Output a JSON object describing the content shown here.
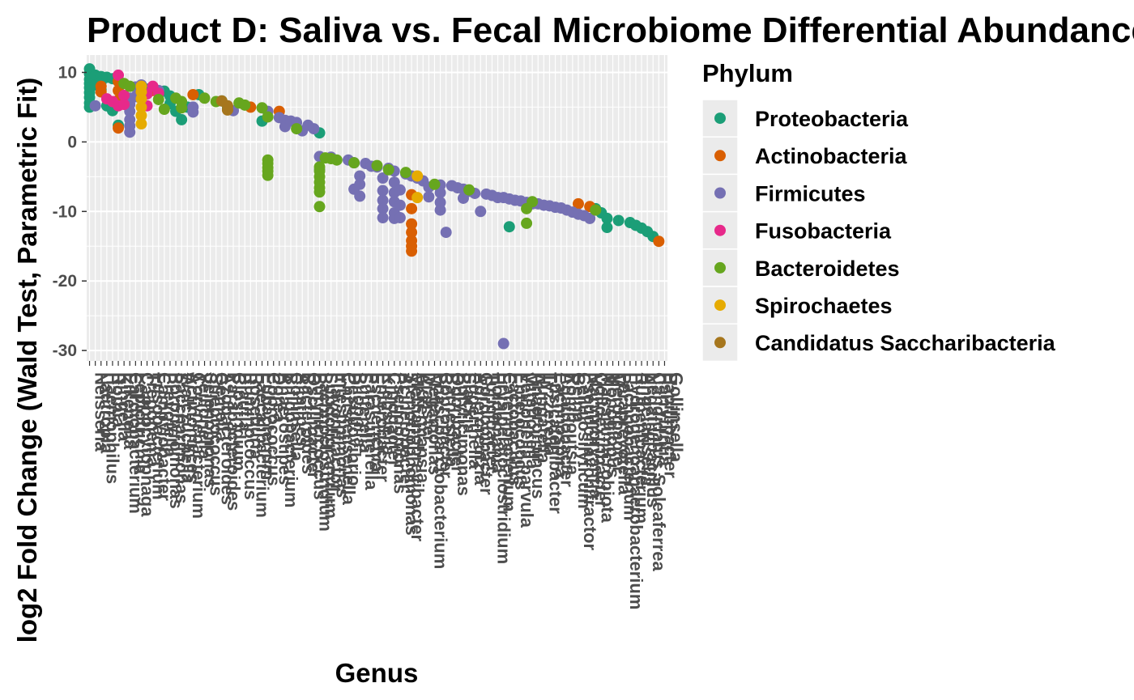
{
  "chart_data": {
    "type": "scatter",
    "title": "Product D: Saliva vs. Fecal Microbiome Differential Abundance",
    "xlabel": "Genus",
    "ylabel": "log2 Fold Change (Wald Test, Parametric Fit)",
    "ylim": [
      -31.5,
      12.5
    ],
    "y_ticks": [
      10,
      0,
      -10,
      -20,
      -30
    ],
    "y_tick_labels": [
      "10",
      "0",
      "-10",
      "-20",
      "-30"
    ],
    "grid": true,
    "panel_background": "#ebebeb",
    "legend": {
      "title": "Phylum",
      "position": "right",
      "entries": [
        {
          "name": "Proteobacteria",
          "color": "#1b9e77"
        },
        {
          "name": "Actinobacteria",
          "color": "#d95f02"
        },
        {
          "name": "Firmicutes",
          "color": "#7570b3"
        },
        {
          "name": "Fusobacteria",
          "color": "#e7298a"
        },
        {
          "name": "Bacteroidetes",
          "color": "#66a61e"
        },
        {
          "name": "Spirochaetes",
          "color": "#e6ab02"
        },
        {
          "name": "Candidatus Saccharibacteria",
          "color": "#a6761d"
        }
      ]
    },
    "x_tick_labels": [
      "Neisseria",
      "Lautropia",
      "Haemophilus",
      "Rothia",
      "Kingella",
      "Eikenella",
      "Cardiobacterium",
      "Leptotrichia",
      "Capnocytophaga",
      "Treponema",
      "Fusobacterium",
      "Campylobacter",
      "Prevotella",
      "Porphyromonas",
      "Saccharimonas",
      "Walczuchella",
      "Actinomyces",
      "Corynebacterium",
      "Veillonella",
      "Selenomonas",
      "Streptococcus",
      "Gemella",
      "Azobacteroides",
      "Parabacteroides",
      "Clostridium",
      "Blautia",
      "Ruminococcus",
      "Roseburia",
      "Faecalibacterium",
      "Eubacterium",
      "Coprococcus",
      "Dorea",
      "Anaerostipes",
      "Bifidobacterium",
      "Collinsella",
      "Alistipes",
      "Bacteroides",
      "Oscillibacter",
      "Butyricicoccus",
      "Lachnoclostridium",
      "Subdoligranulum",
      "Flavonifractor",
      "Intestinimonas",
      "Christensenella",
      "Desulfovibrio",
      "Bilophila",
      "Sutterella",
      "Parasutterella",
      "Escherichia",
      "Enterobacter",
      "Klebsiella",
      "Citrobacter",
      "Pseudomonas",
      "Acinetobacter",
      "Stenotrophomonas",
      "Methanobrevibacter",
      "Akkermansia",
      "Dialister",
      "Megamonas",
      "Phascolarctobacterium",
      "Coprobacter",
      "Barnesiella",
      "Odoribacter",
      "Butyricimonas",
      "Slackia",
      "Eggerthella",
      "Adlercreutzia",
      "Gordonibacter",
      "Turicibacter",
      "Holdemania",
      "Erysipelatoclostridium",
      "Catenibacterium",
      "Lactobacillus",
      "Enterococcus",
      "Veillonella parvula",
      "Mitsuokella",
      "Anaerotruncus",
      "Hungatella",
      "Tyzzerella",
      "Fusicatenibacter",
      "Lachnospira",
      "Agathobacter",
      "Romboutsia",
      "Gelria",
      "Cellulosilyticum",
      "Pseudoflavonifractor",
      "Marvinbryantia",
      "Colidextribacter",
      "Massilimicrobiota",
      "Monoglobus",
      "Merdibacter",
      "Paraprevotella",
      "Lachnobacterium",
      "Hydrogenoanaerobacterium",
      "Ruthenibacterium",
      "Angelakisella",
      "Negativibacillus",
      "Candidatus Soleaferrea",
      "Harryflintia",
      "Papillibacter",
      "Gollinsella"
    ],
    "series": [
      {
        "name": "Proteobacteria",
        "points": [
          [
            0,
            10.5
          ],
          [
            0,
            9.8
          ],
          [
            0,
            9.0
          ],
          [
            0,
            8.4
          ],
          [
            0,
            7.8
          ],
          [
            0,
            7.1
          ],
          [
            0,
            6.4
          ],
          [
            0,
            5.6
          ],
          [
            0,
            5.0
          ],
          [
            1,
            9.6
          ],
          [
            1,
            8.2
          ],
          [
            2,
            9.4
          ],
          [
            2,
            8.6
          ],
          [
            2,
            7.5
          ],
          [
            3,
            9.3
          ],
          [
            3,
            5.2
          ],
          [
            4,
            9.1
          ],
          [
            4,
            4.5
          ],
          [
            5,
            8.9
          ],
          [
            5,
            2.4
          ],
          [
            10,
            7.6
          ],
          [
            13,
            7.3
          ],
          [
            14,
            6.6
          ],
          [
            14,
            5.5
          ],
          [
            15,
            4.4
          ],
          [
            16,
            3.2
          ],
          [
            17,
            5.0
          ],
          [
            19,
            6.8
          ],
          [
            23,
            5.9
          ],
          [
            24,
            4.8
          ],
          [
            30,
            3.0
          ],
          [
            40,
            1.3
          ],
          [
            66,
            -7.0
          ],
          [
            73,
            -12.2
          ],
          [
            88,
            -9.6
          ],
          [
            89,
            -10.2
          ],
          [
            90,
            -11.0
          ],
          [
            90,
            -12.3
          ],
          [
            92,
            -11.3
          ],
          [
            94,
            -11.6
          ],
          [
            95,
            -12.0
          ],
          [
            96,
            -12.4
          ],
          [
            97,
            -12.9
          ],
          [
            98,
            -13.6
          ]
        ]
      },
      {
        "name": "Actinobacteria",
        "points": [
          [
            2,
            8.0
          ],
          [
            2,
            7.2
          ],
          [
            5,
            8.7
          ],
          [
            5,
            7.4
          ],
          [
            5,
            6.0
          ],
          [
            5,
            2.0
          ],
          [
            11,
            7.4
          ],
          [
            18,
            6.8
          ],
          [
            28,
            5.0
          ],
          [
            33,
            4.4
          ],
          [
            56,
            -7.6
          ],
          [
            56,
            -9.6
          ],
          [
            56,
            -11.8
          ],
          [
            56,
            -13.0
          ],
          [
            56,
            -14.2
          ],
          [
            56,
            -15.0
          ],
          [
            56,
            -15.7
          ],
          [
            85,
            -8.9
          ],
          [
            87,
            -9.3
          ],
          [
            99,
            -14.3
          ]
        ]
      },
      {
        "name": "Firmicutes",
        "points": [
          [
            1,
            5.2
          ],
          [
            7,
            6.3
          ],
          [
            7,
            5.4
          ],
          [
            7,
            4.4
          ],
          [
            7,
            3.2
          ],
          [
            7,
            2.3
          ],
          [
            7,
            1.4
          ],
          [
            8,
            7.9
          ],
          [
            8,
            6.5
          ],
          [
            9,
            8.2
          ],
          [
            12,
            7.4
          ],
          [
            18,
            5.0
          ],
          [
            18,
            4.3
          ],
          [
            25,
            4.5
          ],
          [
            31,
            4.4
          ],
          [
            33,
            3.5
          ],
          [
            34,
            3.1
          ],
          [
            34,
            2.2
          ],
          [
            35,
            3.0
          ],
          [
            36,
            2.8
          ],
          [
            37,
            1.6
          ],
          [
            38,
            2.4
          ],
          [
            39,
            1.9
          ],
          [
            40,
            -2.1
          ],
          [
            40,
            -4.0
          ],
          [
            42,
            -2.2
          ],
          [
            45,
            -2.6
          ],
          [
            46,
            -3.0
          ],
          [
            46,
            -6.8
          ],
          [
            47,
            -4.9
          ],
          [
            47,
            -6.1
          ],
          [
            47,
            -7.8
          ],
          [
            48,
            -3.1
          ],
          [
            49,
            -3.5
          ],
          [
            50,
            -3.6
          ],
          [
            51,
            -5.2
          ],
          [
            51,
            -7.0
          ],
          [
            51,
            -8.4
          ],
          [
            51,
            -9.6
          ],
          [
            51,
            -10.9
          ],
          [
            52,
            -3.8
          ],
          [
            53,
            -4.2
          ],
          [
            53,
            -5.8
          ],
          [
            53,
            -7.3
          ],
          [
            53,
            -8.6
          ],
          [
            53,
            -10.2
          ],
          [
            53,
            -11.0
          ],
          [
            54,
            -6.9
          ],
          [
            54,
            -9.1
          ],
          [
            54,
            -10.9
          ],
          [
            55,
            -4.6
          ],
          [
            56,
            -4.9
          ],
          [
            57,
            -5.2
          ],
          [
            58,
            -5.6
          ],
          [
            59,
            -7.9
          ],
          [
            59,
            -6.5
          ],
          [
            61,
            -6.2
          ],
          [
            61,
            -7.3
          ],
          [
            61,
            -8.7
          ],
          [
            61,
            -9.8
          ],
          [
            62,
            -13.0
          ],
          [
            63,
            -6.3
          ],
          [
            64,
            -6.6
          ],
          [
            65,
            -6.8
          ],
          [
            65,
            -8.1
          ],
          [
            66,
            -7.1
          ],
          [
            67,
            -7.4
          ],
          [
            68,
            -10.0
          ],
          [
            69,
            -7.5
          ],
          [
            70,
            -7.7
          ],
          [
            71,
            -8.0
          ],
          [
            72,
            -8.0
          ],
          [
            73,
            -8.2
          ],
          [
            74,
            -8.4
          ],
          [
            75,
            -8.5
          ],
          [
            76,
            -8.7
          ],
          [
            77,
            -8.9
          ],
          [
            78,
            -8.9
          ],
          [
            79,
            -9.1
          ],
          [
            80,
            -9.2
          ],
          [
            81,
            -9.4
          ],
          [
            82,
            -9.5
          ],
          [
            83,
            -9.8
          ],
          [
            84,
            -10.1
          ],
          [
            85,
            -10.4
          ],
          [
            86,
            -10.6
          ],
          [
            87,
            -11.0
          ],
          [
            72,
            -29.0
          ]
        ]
      },
      {
        "name": "Fusobacteria",
        "points": [
          [
            3,
            6.2
          ],
          [
            4,
            5.8
          ],
          [
            5,
            9.6
          ],
          [
            5,
            5.2
          ],
          [
            6,
            6.7
          ],
          [
            6,
            5.4
          ],
          [
            10,
            6.9
          ],
          [
            10,
            5.2
          ],
          [
            11,
            8.0
          ],
          [
            12,
            7.0
          ]
        ]
      },
      {
        "name": "Bacteroidetes",
        "points": [
          [
            6,
            8.4
          ],
          [
            7,
            8.0
          ],
          [
            12,
            6.1
          ],
          [
            13,
            4.7
          ],
          [
            15,
            6.3
          ],
          [
            16,
            5.8
          ],
          [
            16,
            4.9
          ],
          [
            20,
            6.3
          ],
          [
            22,
            5.8
          ],
          [
            26,
            5.6
          ],
          [
            27,
            5.3
          ],
          [
            30,
            4.9
          ],
          [
            31,
            -2.6
          ],
          [
            31,
            -3.1
          ],
          [
            31,
            -3.7
          ],
          [
            31,
            -4.2
          ],
          [
            31,
            -4.8
          ],
          [
            31,
            3.6
          ],
          [
            36,
            1.9
          ],
          [
            40,
            -3.6
          ],
          [
            40,
            -4.2
          ],
          [
            40,
            -5.0
          ],
          [
            40,
            -5.8
          ],
          [
            40,
            -6.6
          ],
          [
            40,
            -7.2
          ],
          [
            40,
            -9.3
          ],
          [
            41,
            -2.3
          ],
          [
            42,
            -2.4
          ],
          [
            43,
            -2.6
          ],
          [
            46,
            -3.0
          ],
          [
            50,
            -3.4
          ],
          [
            52,
            -4.0
          ],
          [
            55,
            -4.4
          ],
          [
            60,
            -6.1
          ],
          [
            66,
            -6.9
          ],
          [
            76,
            -9.6
          ],
          [
            76,
            -11.7
          ],
          [
            77,
            -8.6
          ],
          [
            88,
            -9.8
          ]
        ]
      },
      {
        "name": "Spirochaetes",
        "points": [
          [
            9,
            8.0
          ],
          [
            9,
            7.2
          ],
          [
            9,
            6.2
          ],
          [
            9,
            5.0
          ],
          [
            9,
            3.8
          ],
          [
            9,
            2.6
          ],
          [
            57,
            -4.9
          ],
          [
            57,
            -8.0
          ]
        ]
      },
      {
        "name": "Candidatus Saccharibacteria",
        "points": [
          [
            23,
            5.9
          ],
          [
            24,
            5.2
          ],
          [
            24,
            4.6
          ]
        ]
      }
    ]
  }
}
